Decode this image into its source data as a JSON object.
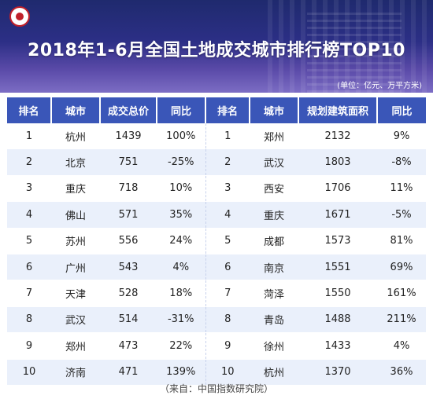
{
  "header": {
    "title": "2018年1-6月全国土地成交城市排行榜TOP10",
    "unit": "(单位：亿元、万平方米)"
  },
  "table": {
    "headers": [
      "排名",
      "城市",
      "成交总价",
      "同比",
      "排名",
      "城市",
      "规划建筑面积",
      "同比"
    ],
    "rows": [
      [
        "1",
        "杭州",
        "1439",
        "100%",
        "1",
        "郑州",
        "2132",
        "9%"
      ],
      [
        "2",
        "北京",
        "751",
        "-25%",
        "2",
        "武汉",
        "1803",
        "-8%"
      ],
      [
        "3",
        "重庆",
        "718",
        "10%",
        "3",
        "西安",
        "1706",
        "11%"
      ],
      [
        "4",
        "佛山",
        "571",
        "35%",
        "4",
        "重庆",
        "1671",
        "-5%"
      ],
      [
        "5",
        "苏州",
        "556",
        "24%",
        "5",
        "成都",
        "1573",
        "81%"
      ],
      [
        "6",
        "广州",
        "543",
        "4%",
        "6",
        "南京",
        "1551",
        "69%"
      ],
      [
        "7",
        "天津",
        "528",
        "18%",
        "7",
        "菏泽",
        "1550",
        "161%"
      ],
      [
        "8",
        "武汉",
        "514",
        "-31%",
        "8",
        "青岛",
        "1488",
        "211%"
      ],
      [
        "9",
        "郑州",
        "473",
        "22%",
        "9",
        "徐州",
        "1433",
        "4%"
      ],
      [
        "10",
        "济南",
        "471",
        "139%",
        "10",
        "杭州",
        "1370",
        "36%"
      ]
    ]
  },
  "source": "（来自：中国指数研究院）",
  "colors": {
    "banner": "#2c2f86",
    "header_row": "#3a56b8",
    "stripe": "#eaf0fb"
  }
}
